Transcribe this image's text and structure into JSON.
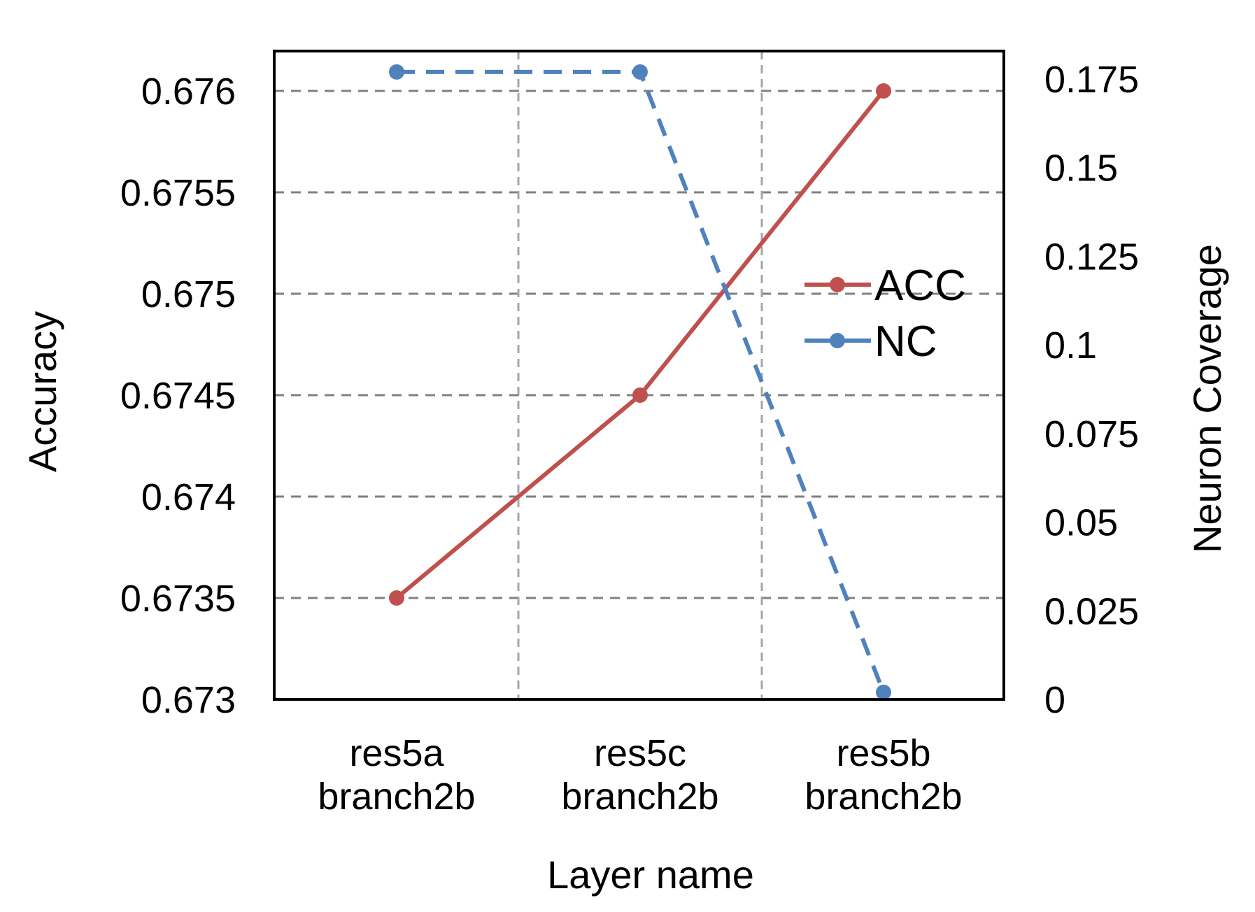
{
  "chart_data": {
    "type": "line",
    "categories": [
      "res5a\nbranch2b",
      "res5c\nbranch2b",
      "res5b\nbranch2b"
    ],
    "xlabel": "Layer name",
    "ylabel": "Accuracy",
    "y2label": "Neuron Coverage",
    "ylim": [
      0.673,
      0.676
    ],
    "y2lim": [
      0,
      0.175
    ],
    "yticks": [
      "0.673",
      "0.6735",
      "0.674",
      "0.6745",
      "0.675",
      "0.6755",
      "0.676"
    ],
    "y2ticks": [
      "0",
      "0.025",
      "0.05",
      "0.075",
      "0.1",
      "0.125",
      "0.15",
      "0.175"
    ],
    "grid": true,
    "legend_position": "right-middle",
    "series": [
      {
        "name": "ACC",
        "axis": "left",
        "values": [
          0.6735,
          0.6745,
          0.676
        ],
        "color": "#c0504d",
        "style": "solid"
      },
      {
        "name": "NC",
        "axis": "right",
        "values": [
          0.177,
          0.177,
          0.002
        ],
        "color": "#4f81bd",
        "style": "dashed"
      }
    ]
  }
}
